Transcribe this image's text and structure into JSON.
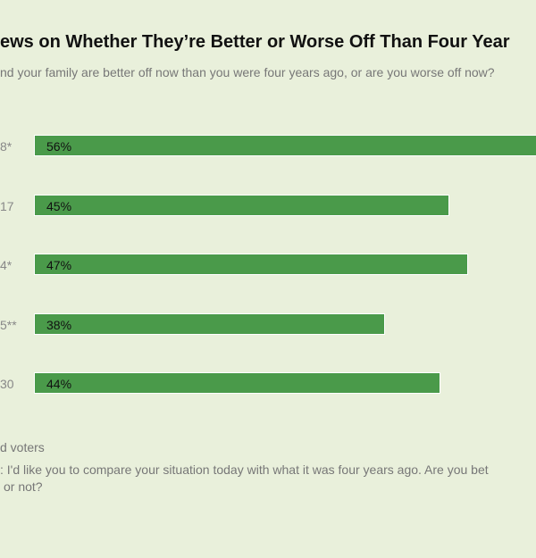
{
  "chart_data": {
    "type": "bar",
    "orientation": "horizontal",
    "title": "ews on Whether They’re Better or Worse Off Than Four Year",
    "subtitle": "nd your family are better off now than you were four years ago, or are you worse off now?",
    "categories": [
      "8*",
      "17",
      "4*",
      "5**",
      "30"
    ],
    "values": [
      56,
      45,
      47,
      38,
      44
    ],
    "value_labels": [
      "56%",
      "45%",
      "47%",
      "38%",
      "44%"
    ],
    "xlim": [
      0,
      100
    ],
    "grid": false,
    "bar_color": "#4a9a4a",
    "footnotes": [
      "d voters",
      ": I'd like you to compare your situation today with what it was four years ago. Are you bet",
      "or not?"
    ]
  }
}
